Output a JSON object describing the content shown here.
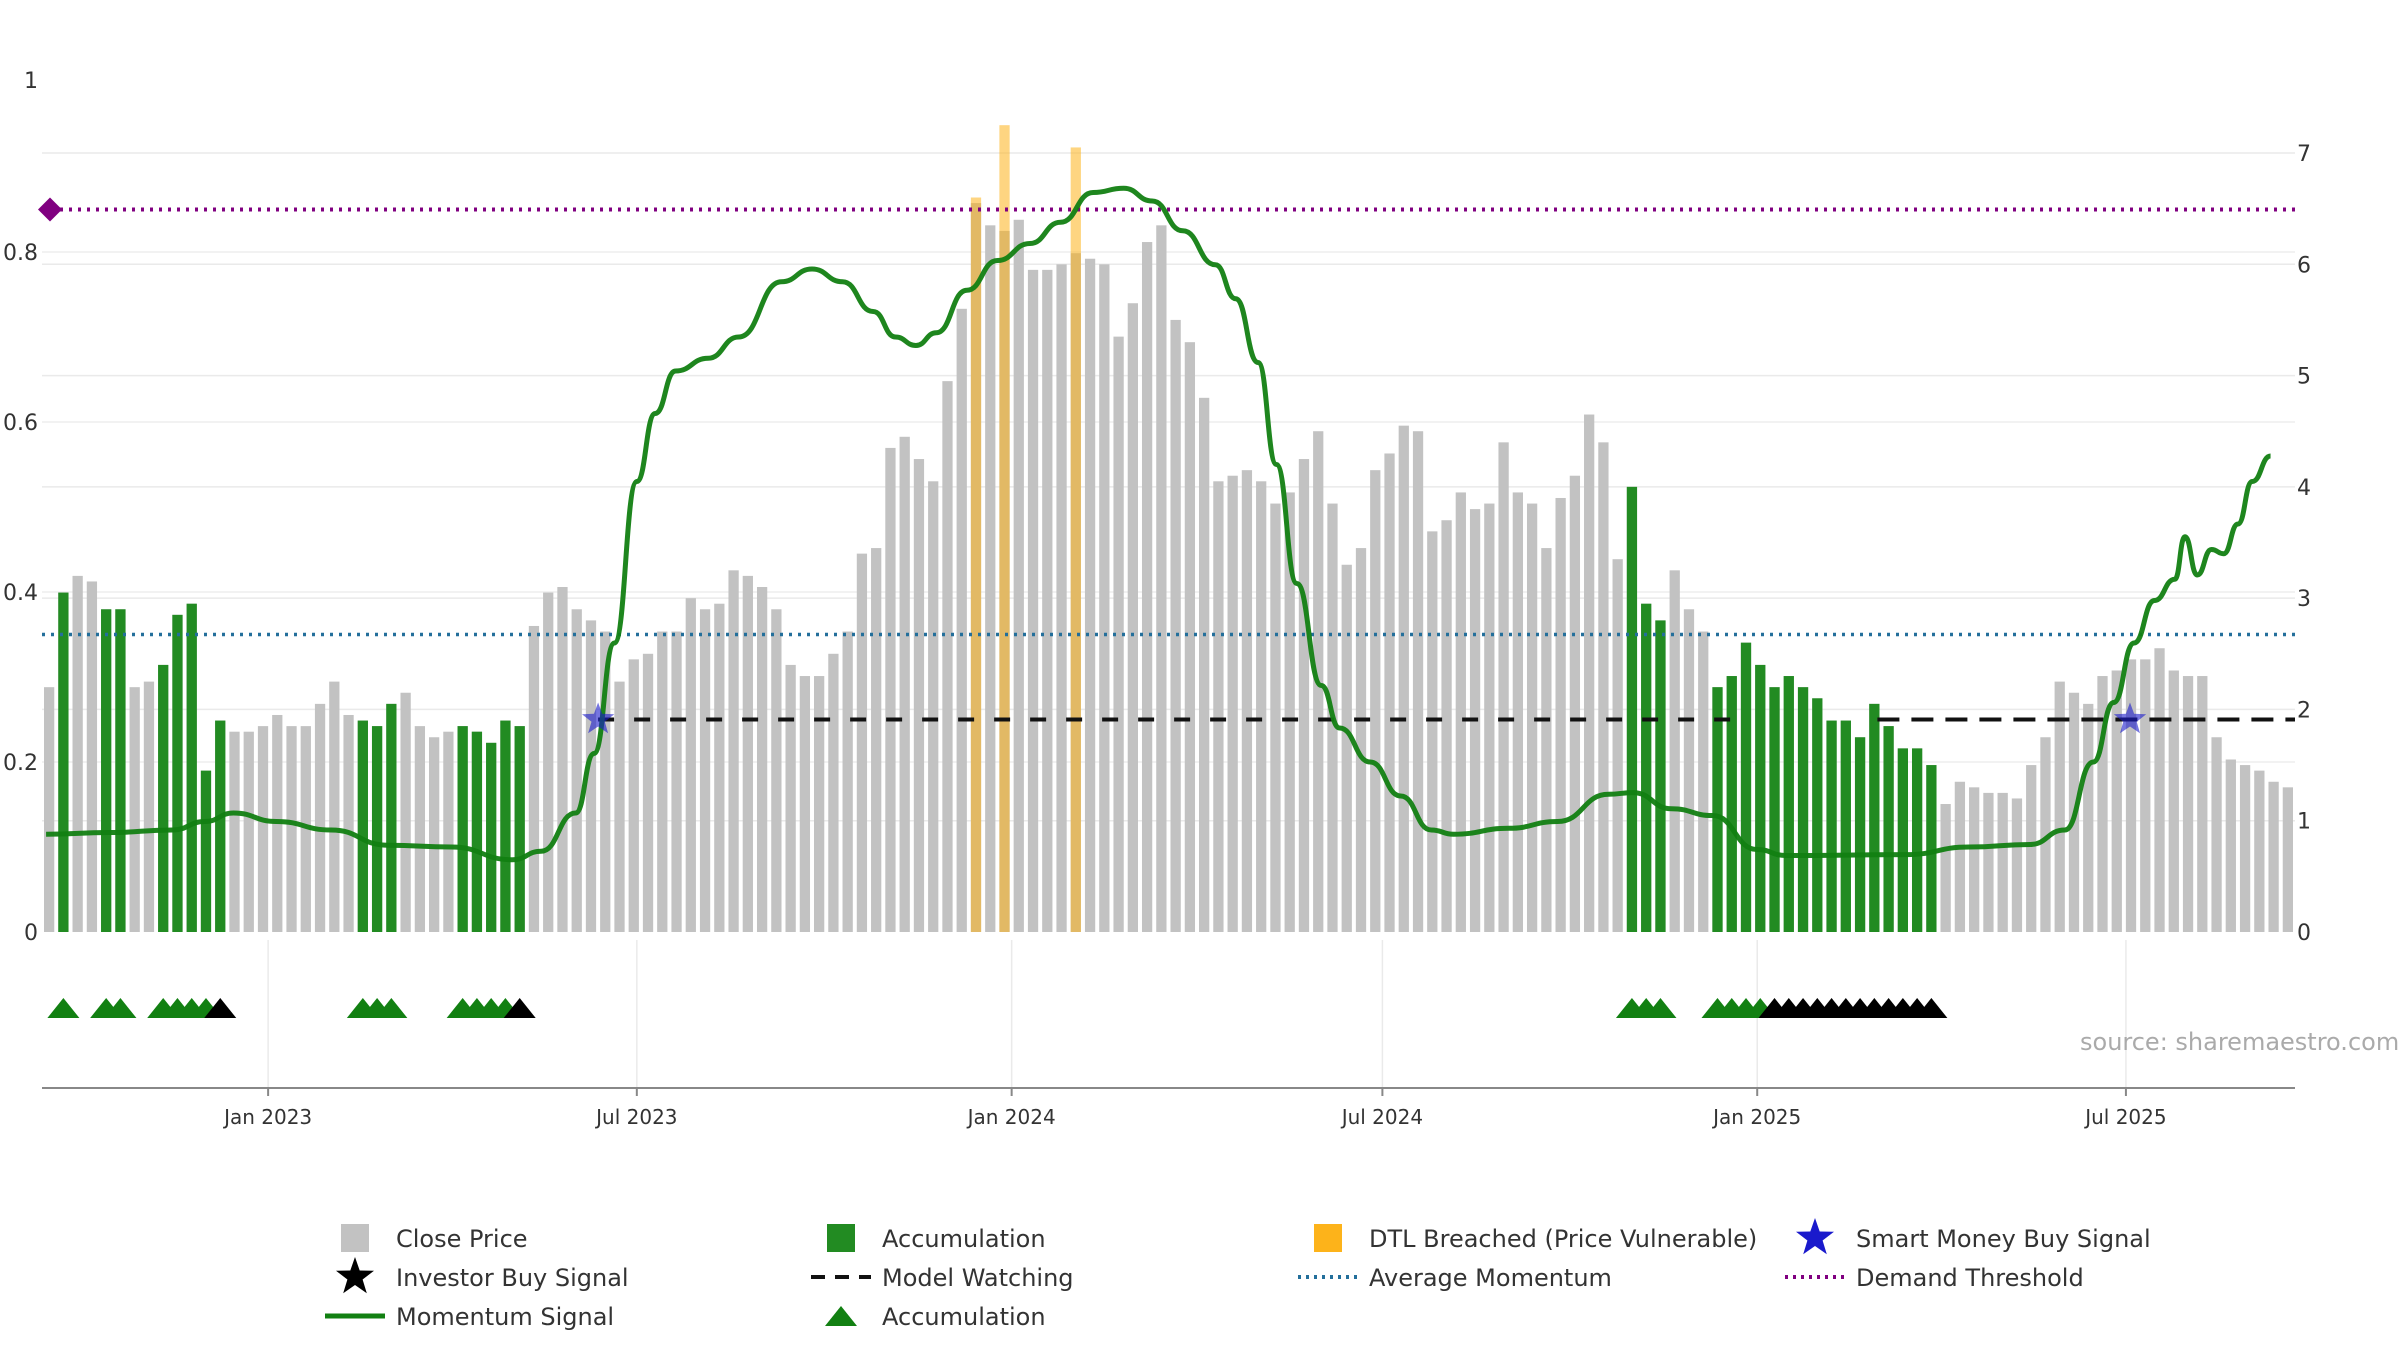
{
  "colors": {
    "close": "#c2c2c2",
    "accumulation": "#228b22",
    "dtl": "#fdb31a",
    "momentum": "#128012",
    "demand": "#800080",
    "average": "#236f9b",
    "watching": "#111111",
    "smart_money": "#1a1acc",
    "investor": "#000000",
    "grid": "#eaeaea"
  },
  "chart_data": {
    "type": "bar",
    "left_axis": {
      "range": [
        0,
        1
      ],
      "ticks": [
        0,
        0.2,
        0.4,
        0.6,
        0.8,
        1
      ]
    },
    "right_axis": {
      "range": [
        0,
        7.3
      ],
      "ticks": [
        0,
        1,
        2,
        3,
        4,
        5,
        6,
        7
      ]
    },
    "x_axis": {
      "start": "2022-09-12",
      "end": "2025-09-22",
      "tick_labels": [
        "Jan 2023",
        "Jul 2023",
        "Jan 2024",
        "Jul 2024",
        "Jan 2025",
        "Jul 2025"
      ],
      "tick_dates": [
        "2023-01-01",
        "2023-07-01",
        "2024-01-01",
        "2024-07-01",
        "2025-01-01",
        "2025-07-01"
      ]
    },
    "grid": true,
    "series": [
      {
        "name": "Close Price",
        "kind": "weekly-bars",
        "axis": "right",
        "start": "2022-09-12",
        "values": [
          2.2,
          3.05,
          3.2,
          3.15,
          2.9,
          2.9,
          2.2,
          2.25,
          2.4,
          2.85,
          2.95,
          1.45,
          1.9,
          1.8,
          1.8,
          1.85,
          1.95,
          1.85,
          1.85,
          2.05,
          2.25,
          1.95,
          1.9,
          1.85,
          2.05,
          2.15,
          1.85,
          1.75,
          1.8,
          1.85,
          1.8,
          1.7,
          1.9,
          1.85,
          2.75,
          3.05,
          3.1,
          2.9,
          2.8,
          2.7,
          2.25,
          2.45,
          2.5,
          2.7,
          2.7,
          3.0,
          2.9,
          2.95,
          3.25,
          3.2,
          3.1,
          2.9,
          2.4,
          2.3,
          2.3,
          2.5,
          2.7,
          3.4,
          3.45,
          4.35,
          4.45,
          4.25,
          4.05,
          4.95,
          5.6,
          6.55,
          6.35,
          6.3,
          6.4,
          5.95,
          5.95,
          6.0,
          6.1,
          6.05,
          6.0,
          5.35,
          5.65,
          6.2,
          6.35,
          5.5,
          5.3,
          4.8,
          4.05,
          4.1,
          4.15,
          4.05,
          3.85,
          3.95,
          4.25,
          4.5,
          3.85,
          3.3,
          3.45,
          4.15,
          4.3,
          4.55,
          4.5,
          3.6,
          3.7,
          3.95,
          3.8,
          3.85,
          4.4,
          3.95,
          3.85,
          3.45,
          3.9,
          4.1,
          4.65,
          4.4,
          3.35,
          4.0,
          2.95,
          2.8,
          3.25,
          2.9,
          2.7,
          2.2,
          2.3,
          2.6,
          2.4,
          2.2,
          2.3,
          2.2,
          2.1,
          1.9,
          1.9,
          1.75,
          2.05,
          1.85,
          1.65,
          1.65,
          1.5,
          1.15,
          1.35,
          1.3,
          1.25,
          1.25,
          1.2,
          1.5,
          1.75,
          2.25,
          2.15,
          2.05,
          2.3,
          2.35,
          2.45,
          2.45,
          2.55,
          2.35,
          2.3,
          2.3,
          1.75,
          1.55,
          1.5,
          1.45,
          1.35,
          1.3
        ]
      },
      {
        "name": "Accumulation",
        "kind": "bar-highlight",
        "weeks": [
          1,
          4,
          5,
          8,
          9,
          10,
          11,
          12,
          22,
          23,
          24,
          29,
          30,
          31,
          32,
          33,
          111,
          112,
          113,
          117,
          118,
          119,
          120,
          121,
          122,
          123,
          124,
          125,
          126,
          127,
          128,
          129,
          130,
          131,
          132
        ]
      },
      {
        "name": "DTL Breached (Price Vulnerable)",
        "kind": "bar-highlight",
        "weeks": [
          65,
          67,
          72
        ],
        "values": [
          6.6,
          7.25,
          7.05
        ]
      },
      {
        "name": "Momentum Signal",
        "kind": "line",
        "axis": "left",
        "points": [
          [
            "2022-09-14",
            0.115
          ],
          [
            "2022-10-15",
            0.117
          ],
          [
            "2022-11-15",
            0.12
          ],
          [
            "2022-12-01",
            0.13
          ],
          [
            "2022-12-15",
            0.14
          ],
          [
            "2023-01-05",
            0.13
          ],
          [
            "2023-02-01",
            0.12
          ],
          [
            "2023-03-01",
            0.102
          ],
          [
            "2023-04-01",
            0.1
          ],
          [
            "2023-05-01",
            0.085
          ],
          [
            "2023-05-15",
            0.095
          ],
          [
            "2023-06-01",
            0.14
          ],
          [
            "2023-06-10",
            0.21
          ],
          [
            "2023-06-20",
            0.34
          ],
          [
            "2023-07-01",
            0.53
          ],
          [
            "2023-07-10",
            0.61
          ],
          [
            "2023-07-20",
            0.66
          ],
          [
            "2023-08-05",
            0.675
          ],
          [
            "2023-08-20",
            0.7
          ],
          [
            "2023-09-10",
            0.765
          ],
          [
            "2023-09-25",
            0.78
          ],
          [
            "2023-10-10",
            0.765
          ],
          [
            "2023-10-25",
            0.73
          ],
          [
            "2023-11-05",
            0.7
          ],
          [
            "2023-11-15",
            0.69
          ],
          [
            "2023-11-25",
            0.705
          ],
          [
            "2023-12-10",
            0.755
          ],
          [
            "2023-12-25",
            0.79
          ],
          [
            "2024-01-10",
            0.81
          ],
          [
            "2024-01-25",
            0.835
          ],
          [
            "2024-02-10",
            0.87
          ],
          [
            "2024-02-25",
            0.875
          ],
          [
            "2024-03-10",
            0.86
          ],
          [
            "2024-03-25",
            0.825
          ],
          [
            "2024-04-10",
            0.785
          ],
          [
            "2024-04-20",
            0.745
          ],
          [
            "2024-05-01",
            0.67
          ],
          [
            "2024-05-10",
            0.55
          ],
          [
            "2024-05-20",
            0.41
          ],
          [
            "2024-06-01",
            0.29
          ],
          [
            "2024-06-10",
            0.24
          ],
          [
            "2024-06-25",
            0.2
          ],
          [
            "2024-07-10",
            0.16
          ],
          [
            "2024-07-25",
            0.12
          ],
          [
            "2024-08-05",
            0.115
          ],
          [
            "2024-09-01",
            0.122
          ],
          [
            "2024-09-25",
            0.13
          ],
          [
            "2024-10-20",
            0.162
          ],
          [
            "2024-11-01",
            0.164
          ],
          [
            "2024-11-20",
            0.145
          ],
          [
            "2024-12-10",
            0.137
          ],
          [
            "2025-01-01",
            0.097
          ],
          [
            "2025-01-15",
            0.09
          ],
          [
            "2025-03-15",
            0.091
          ],
          [
            "2025-04-15",
            0.1
          ],
          [
            "2025-05-15",
            0.103
          ],
          [
            "2025-06-01",
            0.12
          ],
          [
            "2025-06-15",
            0.2
          ],
          [
            "2025-06-25",
            0.27
          ],
          [
            "2025-07-05",
            0.34
          ],
          [
            "2025-07-15",
            0.39
          ],
          [
            "2025-07-25",
            0.415
          ],
          [
            "2025-07-30",
            0.465
          ],
          [
            "2025-08-05",
            0.42
          ],
          [
            "2025-08-12",
            0.45
          ],
          [
            "2025-08-18",
            0.445
          ],
          [
            "2025-08-25",
            0.48
          ],
          [
            "2025-09-01",
            0.53
          ],
          [
            "2025-09-10",
            0.56
          ]
        ]
      },
      {
        "name": "Demand Threshold",
        "kind": "hline",
        "axis": "left",
        "value": 0.85
      },
      {
        "name": "Average Momentum",
        "kind": "hline",
        "axis": "left",
        "value": 0.35
      },
      {
        "name": "Model Watching",
        "kind": "dashed-segments",
        "axis": "left",
        "value": 0.25,
        "segments": [
          [
            "2023-06-12",
            "2024-12-25"
          ],
          [
            "2025-03-01",
            "2025-09-22"
          ]
        ]
      },
      {
        "name": "Smart Money Buy Signal",
        "kind": "star",
        "axis": "left",
        "points": [
          [
            "2023-06-12",
            0.25
          ],
          [
            "2025-07-03",
            0.25
          ]
        ]
      },
      {
        "name": "Accumulation",
        "kind": "triangle-row",
        "weeks": [
          1,
          4,
          5,
          8,
          9,
          10,
          11,
          22,
          23,
          24,
          29,
          30,
          31,
          32,
          111,
          112,
          113,
          117,
          118,
          119,
          120
        ]
      },
      {
        "name": "Investor Buy Signal",
        "kind": "triangle-row",
        "weeks": [
          12,
          33,
          121,
          122,
          123,
          124,
          125,
          126,
          127,
          128,
          129,
          130,
          131,
          132
        ]
      }
    ]
  },
  "source_text": "source: sharemaestro.com",
  "legend": [
    {
      "label": "Close Price",
      "symbol": "square",
      "color": "#c2c2c2"
    },
    {
      "label": "Accumulation",
      "symbol": "square",
      "color": "#228b22"
    },
    {
      "label": "DTL Breached (Price Vulnerable)",
      "symbol": "square",
      "color": "#fdb31a"
    },
    {
      "label": "Smart Money Buy Signal",
      "symbol": "star",
      "color": "#1a1acc"
    },
    {
      "label": "Investor Buy Signal",
      "symbol": "star",
      "color": "#000000"
    },
    {
      "label": "Model Watching",
      "symbol": "dash",
      "color": "#111111"
    },
    {
      "label": "Average Momentum",
      "symbol": "dot",
      "color": "#236f9b"
    },
    {
      "label": "Demand Threshold",
      "symbol": "dot",
      "color": "#800080"
    },
    {
      "label": "Momentum Signal",
      "symbol": "line",
      "color": "#128012"
    },
    {
      "label": "Accumulation",
      "symbol": "triangle",
      "color": "#128012"
    }
  ]
}
